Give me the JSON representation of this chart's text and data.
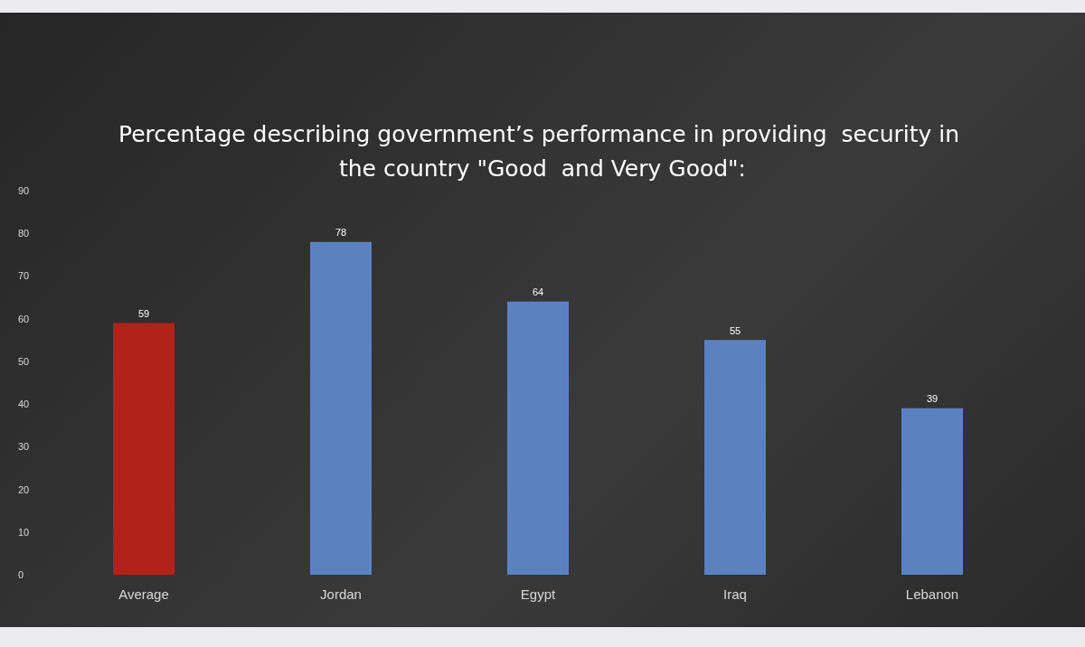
{
  "chart_data": {
    "type": "bar",
    "title": "Percentage describing government’s performance in providing  security in the country \"Good  and Very Good\":",
    "categories": [
      "Average",
      "Jordan",
      "Egypt",
      "Iraq",
      "Lebanon"
    ],
    "values": [
      59,
      78,
      64,
      55,
      39
    ],
    "colors": [
      "#b0231a",
      "#5b82c0",
      "#5b82c0",
      "#5b82c0",
      "#5b82c0"
    ],
    "ylim": [
      0,
      90
    ],
    "yticks": [
      0,
      10,
      20,
      30,
      40,
      50,
      60,
      70,
      80,
      90
    ],
    "data_labels": true,
    "grid": false
  }
}
